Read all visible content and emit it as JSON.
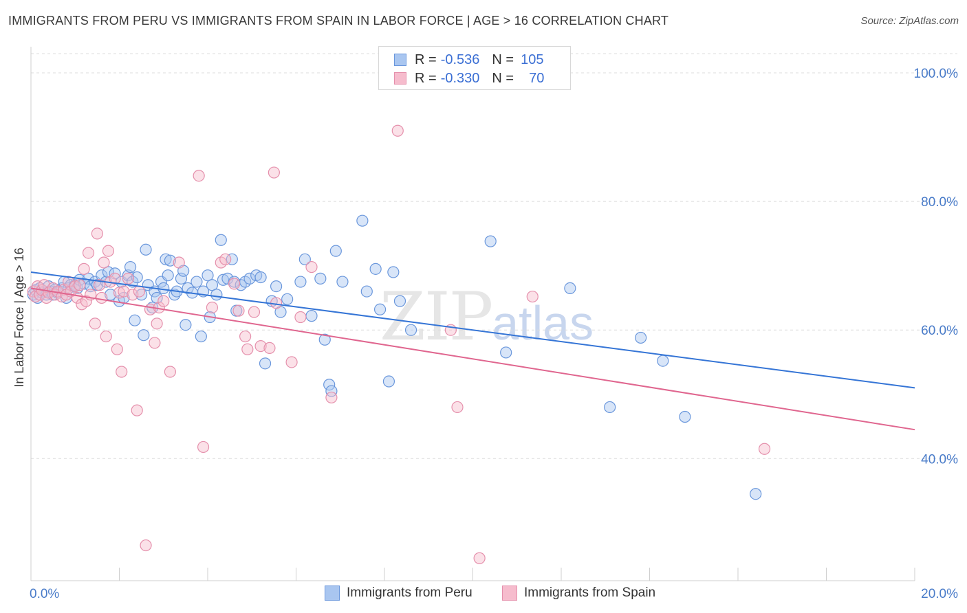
{
  "header": {
    "title": "IMMIGRANTS FROM PERU VS IMMIGRANTS FROM SPAIN IN LABOR FORCE | AGE > 16 CORRELATION CHART",
    "source": "Source: ZipAtlas.com"
  },
  "watermark": {
    "zip": "ZIP",
    "atlas": "atlas"
  },
  "legend": {
    "rows": [
      {
        "r_label": "R =",
        "r_value": "-0.536",
        "n_label": "N =",
        "n_value": "105"
      },
      {
        "r_label": "R =",
        "r_value": "-0.330",
        "n_label": "N =",
        "n_value": "70"
      }
    ]
  },
  "colors": {
    "peru_fill": "#a9c6f0",
    "peru_stroke": "#6a97dc",
    "peru_line": "#3575d6",
    "spain_fill": "#f6bccd",
    "spain_stroke": "#e590ac",
    "spain_line": "#e0668f",
    "grid": "#dcdcdc",
    "tick_text": "#4a7cc9"
  },
  "chart_data": {
    "type": "scatter",
    "title": "IMMIGRANTS FROM PERU VS IMMIGRANTS FROM SPAIN IN LABOR FORCE | AGE > 16 CORRELATION CHART",
    "xlabel": "",
    "ylabel": "In Labor Force | Age > 16",
    "xlim": [
      0,
      20
    ],
    "ylim": [
      21,
      103
    ],
    "y_ticks": [
      40,
      60,
      80,
      100
    ],
    "y_tick_labels": [
      "40.0%",
      "60.0%",
      "80.0%",
      "100.0%"
    ],
    "x_tick_labels": [
      "0.0%",
      "20.0%"
    ],
    "grid": true,
    "legend_placement": "bottom",
    "series": [
      {
        "name": "Immigrants from Peru",
        "r": -0.536,
        "n": 105,
        "trend": [
          [
            0,
            69.0
          ],
          [
            20,
            51.0
          ]
        ],
        "points": [
          [
            0.05,
            65.5
          ],
          [
            0.1,
            66.2
          ],
          [
            0.15,
            65.0
          ],
          [
            0.2,
            66.5
          ],
          [
            0.25,
            65.8
          ],
          [
            0.3,
            66.0
          ],
          [
            0.35,
            65.5
          ],
          [
            0.4,
            66.8
          ],
          [
            0.45,
            66.0
          ],
          [
            0.5,
            65.5
          ],
          [
            0.55,
            66.3
          ],
          [
            0.6,
            65.8
          ],
          [
            0.7,
            66.5
          ],
          [
            0.75,
            67.5
          ],
          [
            0.8,
            65.0
          ],
          [
            0.85,
            66.5
          ],
          [
            0.9,
            67.0
          ],
          [
            1.0,
            67.0
          ],
          [
            1.05,
            66.5
          ],
          [
            1.1,
            67.8
          ],
          [
            1.2,
            67.2
          ],
          [
            1.3,
            68.0
          ],
          [
            1.35,
            66.8
          ],
          [
            1.45,
            67.5
          ],
          [
            1.5,
            67.0
          ],
          [
            1.6,
            68.5
          ],
          [
            1.7,
            67.5
          ],
          [
            1.75,
            69.0
          ],
          [
            1.8,
            65.5
          ],
          [
            1.9,
            68.8
          ],
          [
            2.0,
            64.5
          ],
          [
            2.05,
            67.5
          ],
          [
            2.1,
            65.0
          ],
          [
            2.2,
            68.5
          ],
          [
            2.25,
            69.8
          ],
          [
            2.3,
            67.5
          ],
          [
            2.35,
            61.5
          ],
          [
            2.4,
            68.2
          ],
          [
            2.5,
            65.5
          ],
          [
            2.55,
            59.2
          ],
          [
            2.6,
            72.5
          ],
          [
            2.65,
            67.0
          ],
          [
            2.75,
            63.5
          ],
          [
            2.8,
            66.0
          ],
          [
            2.85,
            65.0
          ],
          [
            2.95,
            67.5
          ],
          [
            3.0,
            66.5
          ],
          [
            3.05,
            71.0
          ],
          [
            3.1,
            68.5
          ],
          [
            3.15,
            70.8
          ],
          [
            3.25,
            65.5
          ],
          [
            3.3,
            66.0
          ],
          [
            3.4,
            68.0
          ],
          [
            3.45,
            69.2
          ],
          [
            3.5,
            60.8
          ],
          [
            3.55,
            66.5
          ],
          [
            3.65,
            65.8
          ],
          [
            3.75,
            67.5
          ],
          [
            3.85,
            59.0
          ],
          [
            3.9,
            66.0
          ],
          [
            4.0,
            68.5
          ],
          [
            4.05,
            62.0
          ],
          [
            4.1,
            67.0
          ],
          [
            4.2,
            65.5
          ],
          [
            4.3,
            74.0
          ],
          [
            4.35,
            67.8
          ],
          [
            4.45,
            68.0
          ],
          [
            4.55,
            71.0
          ],
          [
            4.6,
            67.5
          ],
          [
            4.65,
            63.0
          ],
          [
            4.75,
            67.0
          ],
          [
            4.85,
            67.5
          ],
          [
            4.95,
            68.0
          ],
          [
            5.1,
            68.5
          ],
          [
            5.2,
            68.2
          ],
          [
            5.3,
            54.8
          ],
          [
            5.45,
            64.5
          ],
          [
            5.55,
            66.8
          ],
          [
            5.65,
            62.8
          ],
          [
            5.8,
            64.8
          ],
          [
            6.1,
            67.5
          ],
          [
            6.2,
            71.0
          ],
          [
            6.35,
            62.2
          ],
          [
            6.55,
            68.0
          ],
          [
            6.65,
            58.5
          ],
          [
            6.75,
            51.5
          ],
          [
            6.8,
            50.5
          ],
          [
            6.9,
            72.3
          ],
          [
            7.05,
            67.5
          ],
          [
            7.5,
            77.0
          ],
          [
            7.6,
            66.0
          ],
          [
            7.8,
            69.5
          ],
          [
            7.9,
            63.2
          ],
          [
            8.1,
            52.0
          ],
          [
            8.2,
            69.0
          ],
          [
            8.35,
            64.5
          ],
          [
            8.6,
            60.0
          ],
          [
            10.4,
            73.8
          ],
          [
            10.75,
            56.5
          ],
          [
            12.2,
            66.5
          ],
          [
            13.1,
            48.0
          ],
          [
            13.8,
            58.8
          ],
          [
            14.3,
            55.2
          ],
          [
            14.8,
            46.5
          ],
          [
            16.4,
            34.5
          ]
        ]
      },
      {
        "name": "Immigrants from Spain",
        "r": -0.33,
        "n": 70,
        "trend": [
          [
            0,
            66.5
          ],
          [
            20,
            44.5
          ]
        ],
        "points": [
          [
            0.05,
            66.0
          ],
          [
            0.1,
            65.2
          ],
          [
            0.15,
            66.8
          ],
          [
            0.2,
            65.5
          ],
          [
            0.25,
            66.2
          ],
          [
            0.3,
            67.0
          ],
          [
            0.35,
            65.0
          ],
          [
            0.4,
            65.8
          ],
          [
            0.5,
            66.5
          ],
          [
            0.55,
            65.5
          ],
          [
            0.6,
            66.0
          ],
          [
            0.7,
            65.2
          ],
          [
            0.75,
            66.3
          ],
          [
            0.8,
            65.5
          ],
          [
            0.85,
            67.5
          ],
          [
            0.9,
            66.0
          ],
          [
            1.0,
            66.8
          ],
          [
            1.05,
            65.0
          ],
          [
            1.1,
            67.0
          ],
          [
            1.15,
            64.0
          ],
          [
            1.2,
            69.5
          ],
          [
            1.25,
            64.5
          ],
          [
            1.3,
            72.0
          ],
          [
            1.35,
            65.5
          ],
          [
            1.45,
            61.0
          ],
          [
            1.5,
            75.0
          ],
          [
            1.55,
            67.0
          ],
          [
            1.6,
            65.0
          ],
          [
            1.65,
            70.5
          ],
          [
            1.7,
            59.0
          ],
          [
            1.75,
            72.3
          ],
          [
            1.8,
            67.5
          ],
          [
            1.9,
            68.0
          ],
          [
            1.95,
            57.0
          ],
          [
            2.0,
            65.8
          ],
          [
            2.05,
            53.5
          ],
          [
            2.1,
            66.0
          ],
          [
            2.2,
            68.0
          ],
          [
            2.3,
            65.5
          ],
          [
            2.4,
            47.5
          ],
          [
            2.45,
            66.0
          ],
          [
            2.6,
            26.5
          ],
          [
            2.7,
            63.2
          ],
          [
            2.8,
            58.0
          ],
          [
            2.85,
            61.0
          ],
          [
            2.9,
            63.5
          ],
          [
            3.0,
            64.5
          ],
          [
            3.15,
            53.5
          ],
          [
            3.35,
            70.5
          ],
          [
            3.8,
            84.0
          ],
          [
            3.9,
            41.8
          ],
          [
            4.1,
            63.5
          ],
          [
            4.3,
            70.5
          ],
          [
            4.4,
            71.0
          ],
          [
            4.6,
            67.2
          ],
          [
            4.7,
            63.0
          ],
          [
            4.85,
            59.0
          ],
          [
            4.9,
            57.0
          ],
          [
            5.05,
            62.8
          ],
          [
            5.2,
            57.5
          ],
          [
            5.4,
            57.2
          ],
          [
            5.5,
            84.5
          ],
          [
            5.55,
            64.2
          ],
          [
            5.9,
            55.0
          ],
          [
            6.1,
            62.0
          ],
          [
            6.35,
            69.8
          ],
          [
            6.8,
            49.5
          ],
          [
            8.3,
            91.0
          ],
          [
            9.5,
            60.0
          ],
          [
            9.65,
            48.0
          ],
          [
            10.15,
            24.5
          ],
          [
            11.35,
            65.2
          ],
          [
            16.6,
            41.5
          ]
        ]
      }
    ]
  },
  "bottom_legend": {
    "peru_label": "Immigrants from Peru",
    "spain_label": "Immigrants from Spain"
  }
}
